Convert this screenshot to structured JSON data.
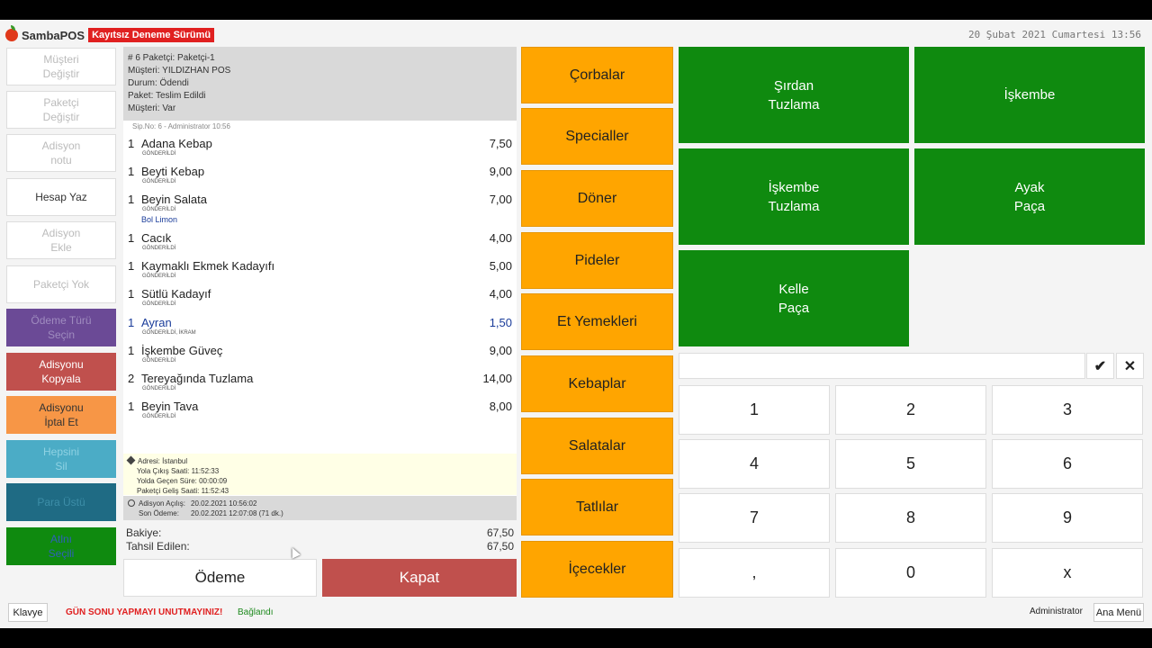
{
  "header": {
    "app_name": "SambaPOS",
    "trial_badge": "Kayıtsız Deneme Sürümü",
    "datetime": "20 Şubat 2021 Cumartesi 13:56"
  },
  "left_buttons": [
    {
      "label": "Müşteri\nDeğiştir"
    },
    {
      "label": "Paketçi\nDeğiştir"
    },
    {
      "label": "Adisyon\nnotu"
    },
    {
      "label": "Hesap Yaz"
    },
    {
      "label": "Adisyon\nEkle"
    },
    {
      "label": "Paketçi Yok"
    },
    {
      "label": "Ödeme Türü\nSeçin"
    },
    {
      "label": "Adisyonu\nKopyala"
    },
    {
      "label": "Adisyonu\nİptal Et"
    },
    {
      "label": "Hepsini\nSil"
    },
    {
      "label": "Para Üstü"
    },
    {
      "label": "Atlnı\nSeçili"
    }
  ],
  "ticket": {
    "header_lines": [
      "# 6 Paketçi: Paketçi-1",
      "Müşteri: YILDIZHAN POS",
      "Durum: Ödendi",
      "Paket: Teslim Edildi",
      "Müşteri: Var"
    ],
    "sub_info": "Sip.No: 6 - Administrator 10:56",
    "items": [
      {
        "qty": "1",
        "name": "Adana Kebap",
        "price": "7,50",
        "status": "GÖNDERİLDİ",
        "note": ""
      },
      {
        "qty": "1",
        "name": "Beyti Kebap",
        "price": "9,00",
        "status": "GÖNDERİLDİ",
        "note": ""
      },
      {
        "qty": "1",
        "name": "Beyin Salata",
        "price": "7,00",
        "status": "GÖNDERİLDİ",
        "note": "Bol Limon"
      },
      {
        "qty": "1",
        "name": "Cacık",
        "price": "4,00",
        "status": "GÖNDERİLDİ",
        "note": ""
      },
      {
        "qty": "1",
        "name": "Kaymaklı Ekmek Kadayıfı",
        "price": "5,00",
        "status": "GÖNDERİLDİ",
        "note": ""
      },
      {
        "qty": "1",
        "name": "Sütlü Kadayıf",
        "price": "4,00",
        "status": "GÖNDERİLDİ",
        "note": ""
      },
      {
        "qty": "1",
        "name": "Ayran",
        "price": "1,50",
        "status": "GÖNDERİLDİ, İKRAM",
        "note": ""
      },
      {
        "qty": "1",
        "name": "İşkembe Güveç",
        "price": "9,00",
        "status": "GÖNDERİLDİ",
        "note": ""
      },
      {
        "qty": "2",
        "name": "Tereyağında Tuzlama",
        "price": "14,00",
        "status": "GÖNDERİLDİ",
        "note": ""
      },
      {
        "qty": "1",
        "name": "Beyin Tava",
        "price": "8,00",
        "status": "GÖNDERİLDİ",
        "note": ""
      }
    ],
    "address": {
      "line1": "Adresi: İstanbul",
      "line2": "Yola Çıkış Saati: 11:52:33",
      "line3": "Yolda Geçen Süre: 00:00:09",
      "line4": "Paketçi Geliş Saati: 11:52:43"
    },
    "times": {
      "open_label": "Adisyon Açılış:",
      "open_value": "20.02.2021 10:56:02",
      "last_label": "Son Ödeme:",
      "last_value": "20.02.2021 12:07:08 (71 dk.)"
    },
    "balance_label": "Bakiye:",
    "balance_value": "67,50",
    "collected_label": "Tahsil Edilen:",
    "collected_value": "67,50",
    "pay_label": "Ödeme",
    "close_label": "Kapat"
  },
  "categories": [
    "Çorbalar",
    "Specialler",
    "Döner",
    "Pideler",
    "Et Yemekleri",
    "Kebaplar",
    "Salatalar",
    "Tatlılar",
    "İçecekler"
  ],
  "products": [
    "Şırdan\nTuzlama",
    "İşkembe",
    "İşkembe\nTuzlama",
    "Ayak\nPaça",
    "Kelle\nPaça"
  ],
  "numpad": {
    "keys": [
      "1",
      "2",
      "3",
      "4",
      "5",
      "6",
      "7",
      "8",
      "9",
      ",",
      "0",
      "x"
    ],
    "ok_icon": "✔",
    "cancel_icon": "✕"
  },
  "footer": {
    "keyboard_label": "Klavye",
    "warning": "GÜN SONU YAPMAYI UNUTMAYINIZ!",
    "connection": "Bağlandı",
    "user": "Administrator",
    "menu_label": "Ana Menü"
  },
  "colors": {
    "category": "#ffa500",
    "product": "#0f8a0f",
    "close": "#c0504d"
  }
}
